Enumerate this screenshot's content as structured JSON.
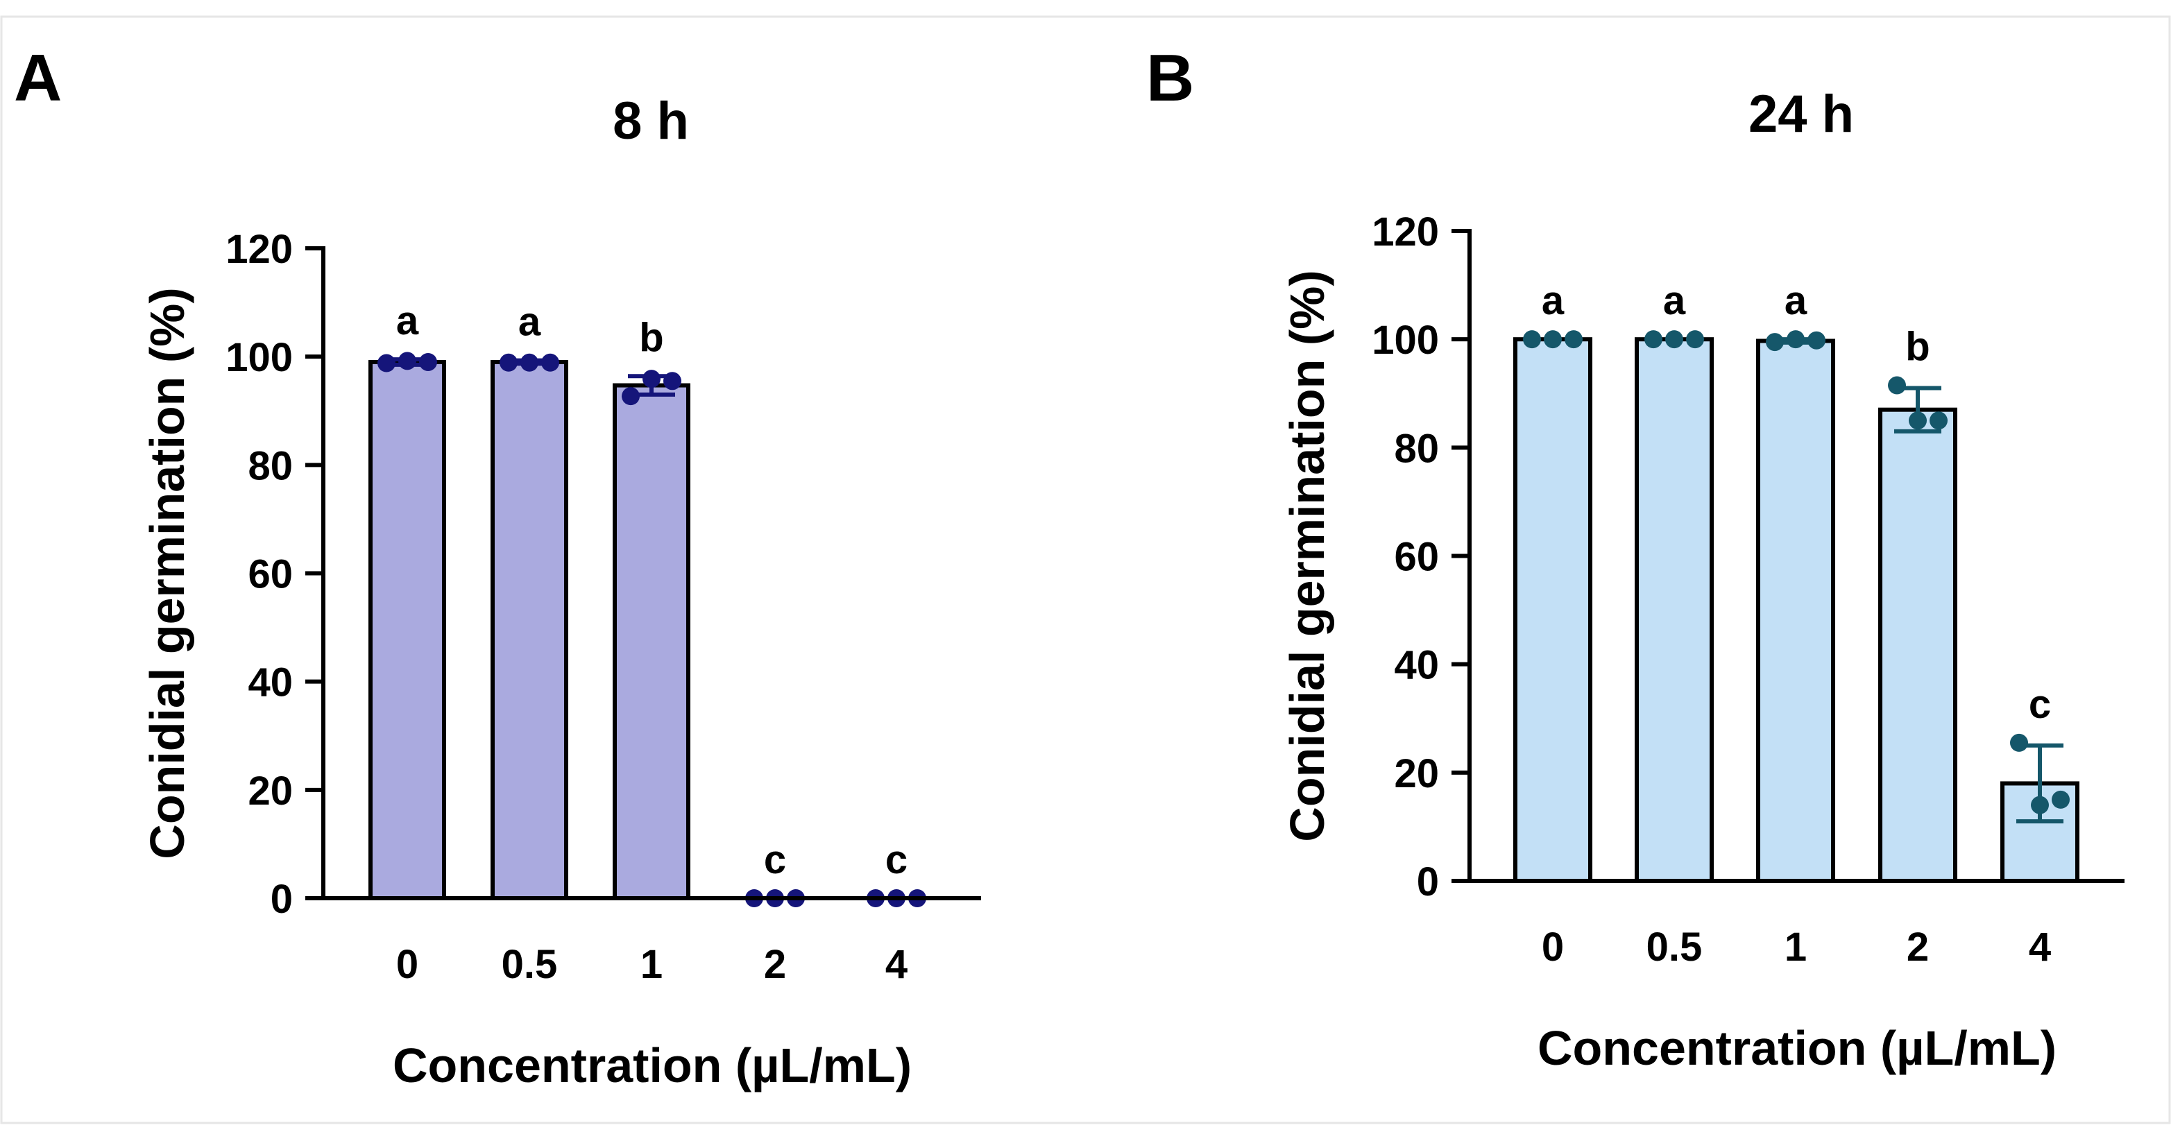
{
  "figure": {
    "panel_letters": [
      "A",
      "B"
    ]
  },
  "chart_data": [
    {
      "panel": "A",
      "type": "bar",
      "title": "8 h",
      "xlabel": "Concentration (µL/mL)",
      "ylabel": "Conidial germination (%)",
      "categories": [
        "0",
        "0.5",
        "1",
        "2",
        "4"
      ],
      "values": [
        99,
        99,
        94.7,
        0,
        0
      ],
      "errors": [
        0.5,
        0.3,
        1.7,
        0,
        0
      ],
      "points": [
        [
          98.8,
          99.2,
          99
        ],
        [
          98.9,
          98.9,
          98.9
        ],
        [
          92.7,
          95.9,
          95.5
        ],
        [
          0,
          0,
          0
        ],
        [
          0,
          0,
          0
        ]
      ],
      "significance": [
        "a",
        "a",
        "b",
        "c",
        "c"
      ],
      "ylim": [
        0,
        120
      ],
      "yticks": [
        0,
        20,
        40,
        60,
        80,
        100,
        120
      ],
      "bar_color": "#aaaadf",
      "point_color": "#15157a",
      "grid": false
    },
    {
      "panel": "B",
      "type": "bar",
      "title": "24 h",
      "xlabel": "Concentration (µL/mL)",
      "ylabel": "Conidial germination (%)",
      "categories": [
        "0",
        "0.5",
        "1",
        "2",
        "4"
      ],
      "values": [
        100,
        100,
        99.7,
        87,
        18
      ],
      "errors": [
        0,
        0,
        0.3,
        4,
        7
      ],
      "points": [
        [
          100,
          100,
          100
        ],
        [
          100,
          100,
          100
        ],
        [
          99.5,
          100,
          99.8
        ],
        [
          91.5,
          85,
          85
        ],
        [
          25.5,
          14,
          15
        ]
      ],
      "significance": [
        "a",
        "a",
        "a",
        "b",
        "c"
      ],
      "ylim": [
        0,
        120
      ],
      "yticks": [
        0,
        20,
        40,
        60,
        80,
        100,
        120
      ],
      "bar_color": "#c3e0f6",
      "point_color": "#15576a",
      "grid": false
    }
  ]
}
